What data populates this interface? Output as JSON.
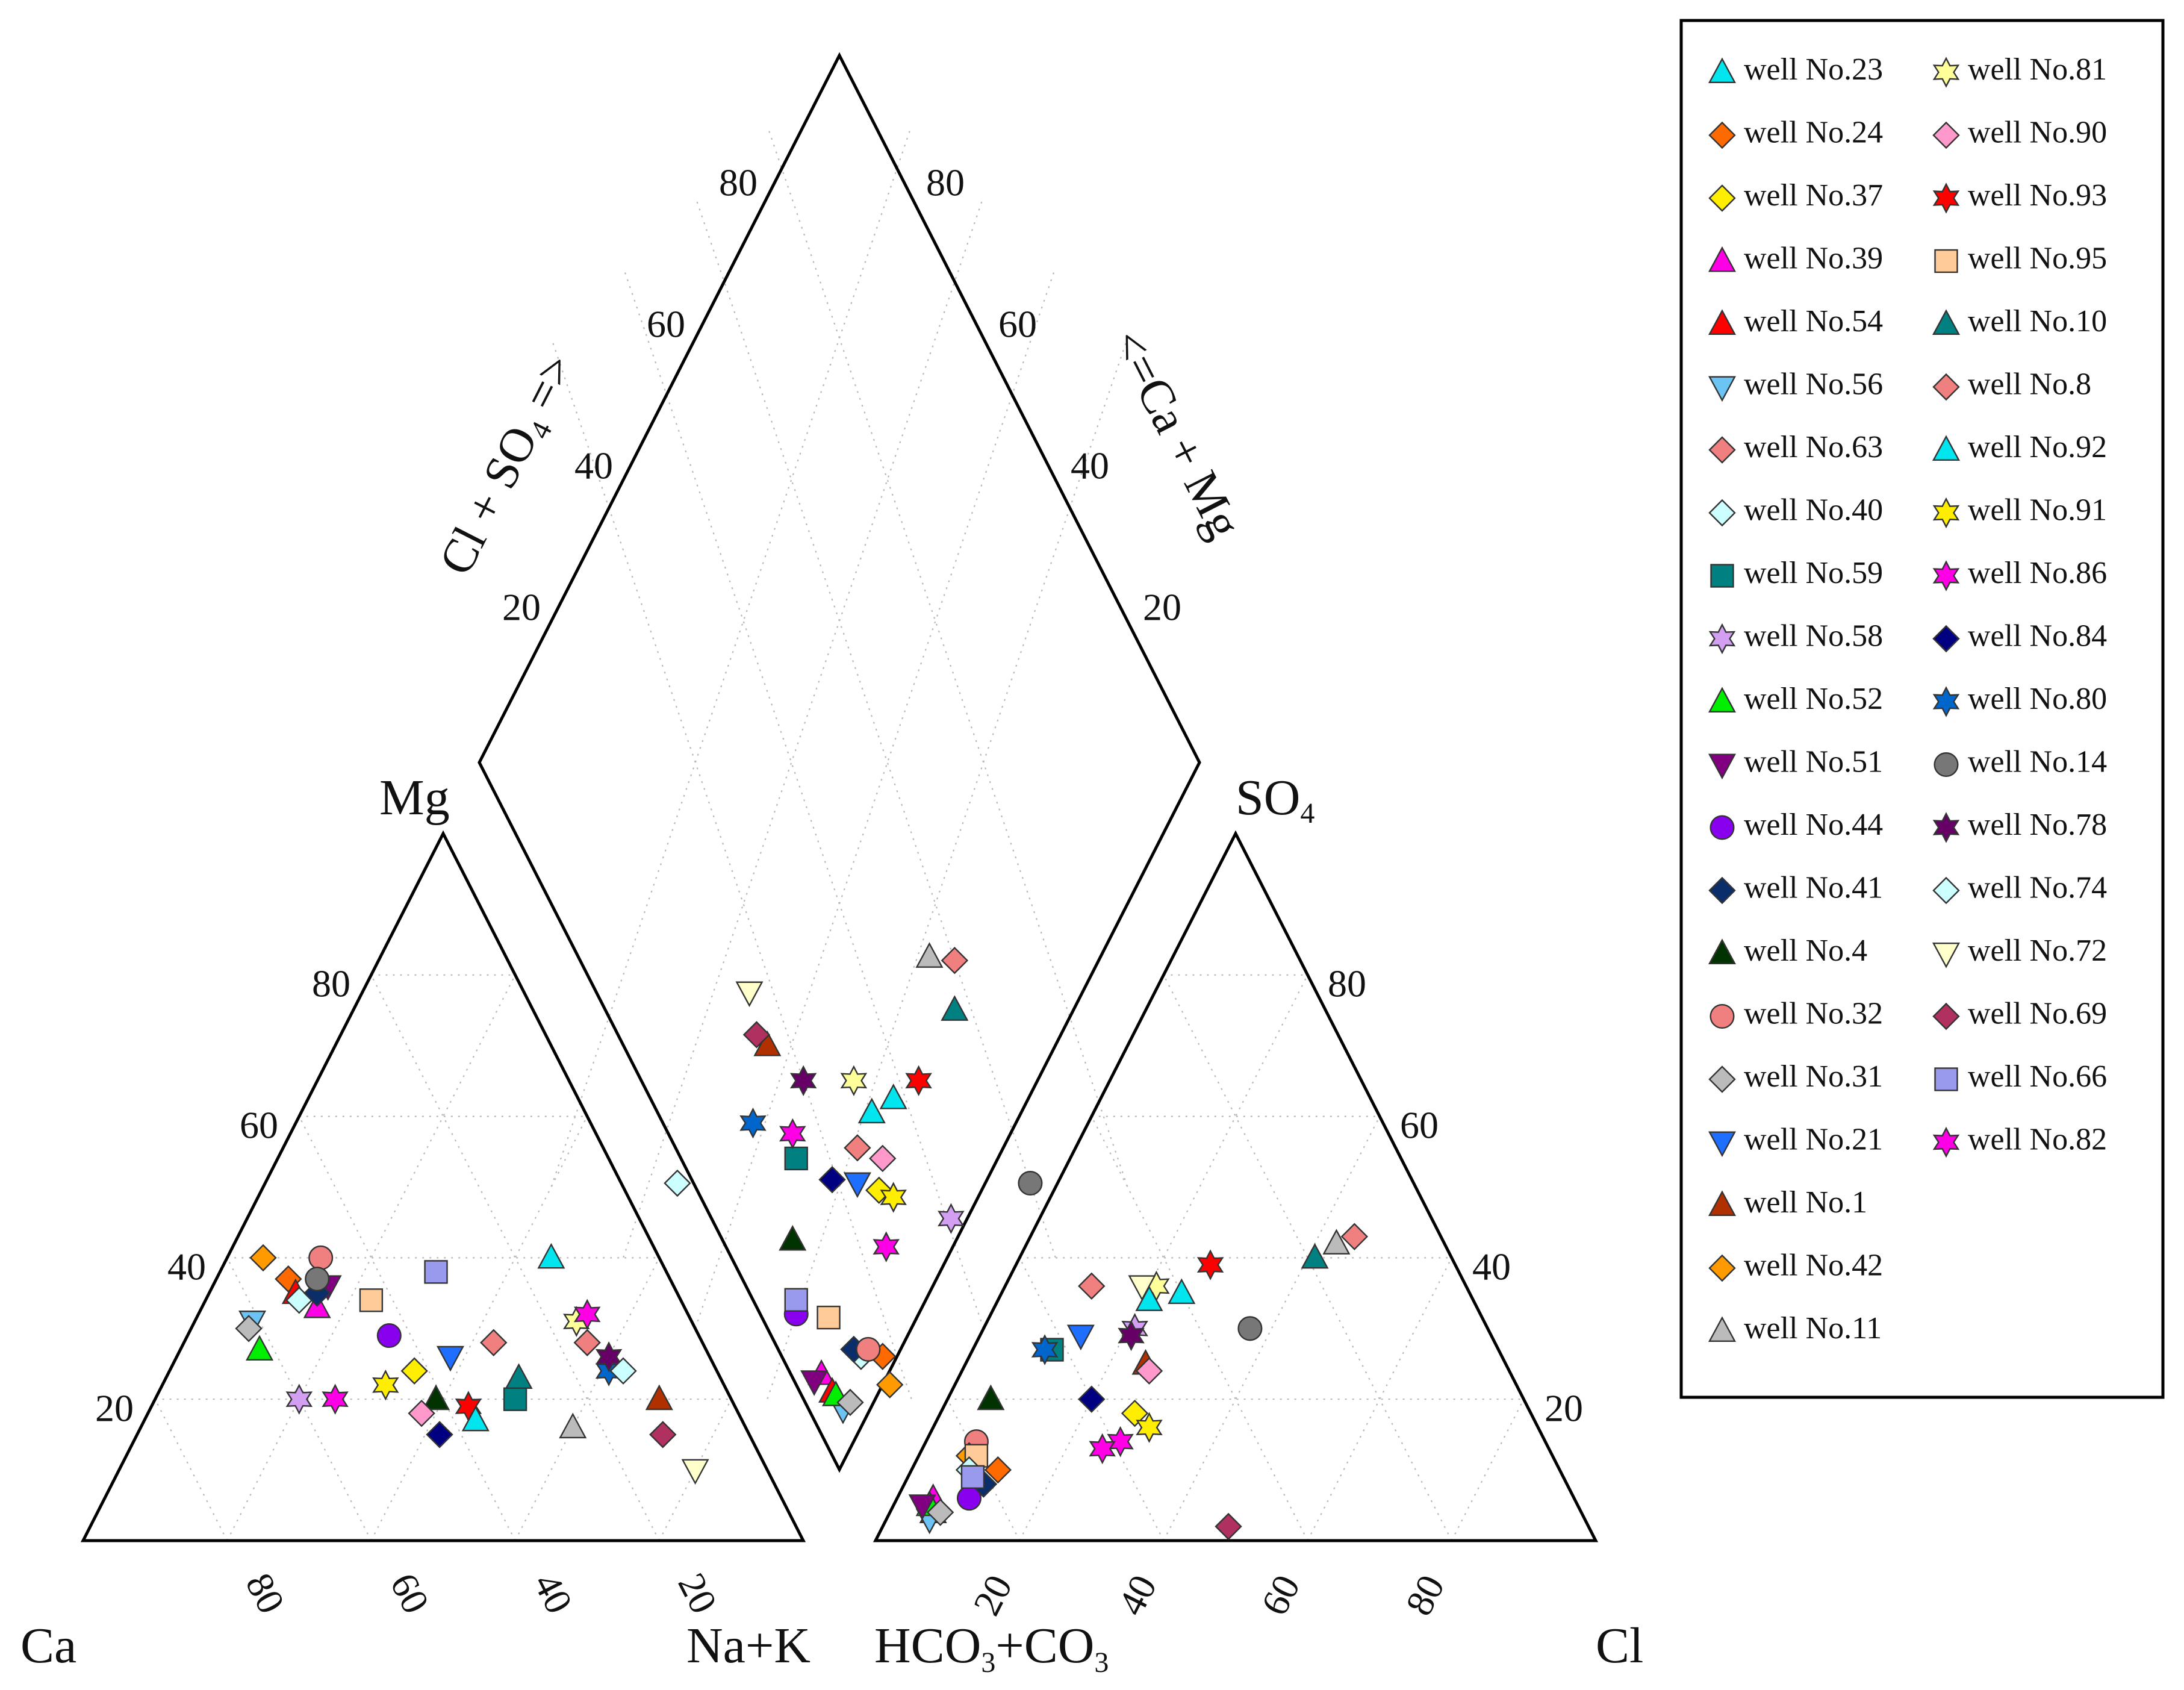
{
  "chart_data": {
    "type": "scatter",
    "title": "",
    "labels": {
      "cation_left": "Ca",
      "cation_right": "Na+K",
      "cation_top": "Mg",
      "anion_left_main": "HCO",
      "anion_left_sub1": "3",
      "anion_left_plus": "+CO",
      "anion_left_sub2": "3",
      "anion_right": "Cl",
      "anion_top_main": "SO",
      "anion_top_sub": "4",
      "diamond_left_main": "Cl + SO",
      "diamond_left_sub": "4",
      "diamond_left_arrow": " =>",
      "diamond_right": "<=Ca + Mg"
    },
    "ticks": {
      "cation_left_edge": [
        "20",
        "40",
        "60",
        "80"
      ],
      "cation_bottom": [
        "80",
        "60",
        "40",
        "20"
      ],
      "anion_right_edge": [
        "80",
        "60",
        "40",
        "20"
      ],
      "anion_bottom": [
        "20",
        "40",
        "60",
        "80"
      ],
      "diamond_left": [
        "80",
        "60",
        "40",
        "20"
      ],
      "diamond_right": [
        "80",
        "60",
        "40",
        "20"
      ]
    },
    "legend_position": "right",
    "series": [
      {
        "name": "well No.23",
        "marker": "triangle-up",
        "color": "#00e5ee",
        "cation": {
          "mg": 40,
          "nak": 45
        },
        "anion": {
          "so4": 35,
          "cl": 25
        }
      },
      {
        "name": "well No.24",
        "marker": "diamond",
        "color": "#ff6a00",
        "cation": {
          "mg": 37,
          "nak": 10
        },
        "anion": {
          "so4": 10,
          "cl": 12
        }
      },
      {
        "name": "well No.37",
        "marker": "diamond",
        "color": "#ffee00",
        "cation": {
          "mg": 24,
          "nak": 34
        },
        "anion": {
          "so4": 18,
          "cl": 27
        }
      },
      {
        "name": "well No.39",
        "marker": "triangle-up",
        "color": "#ff00e6",
        "cation": {
          "mg": 33,
          "nak": 16
        },
        "anion": {
          "so4": 6,
          "cl": 5
        }
      },
      {
        "name": "well No.54",
        "marker": "triangle-up",
        "color": "#ff0000",
        "cation": {
          "mg": 35,
          "nak": 12
        },
        "anion": {
          "so4": 4,
          "cl": 6
        }
      },
      {
        "name": "well No.56",
        "marker": "triangle-down",
        "color": "#6cc4f4",
        "cation": {
          "mg": 31,
          "nak": 8
        },
        "anion": {
          "so4": 3,
          "cl": 6
        }
      },
      {
        "name": "well No.63",
        "marker": "diamond",
        "color": "#f08080",
        "cation": {
          "mg": 28,
          "nak": 43
        },
        "anion": {
          "so4": 36,
          "cl": 12
        }
      },
      {
        "name": "well No.40",
        "marker": "diamond",
        "color": "#ccffff",
        "cation": {
          "mg": 34,
          "nak": 13
        },
        "anion": {
          "so4": 8,
          "cl": 11
        }
      },
      {
        "name": "well No.59",
        "marker": "square",
        "color": "#008080",
        "cation": {
          "mg": 20,
          "nak": 50
        },
        "anion": {
          "so4": 27,
          "cl": 11
        }
      },
      {
        "name": "well No.58",
        "marker": "star6",
        "color": "#d39ff2",
        "cation": {
          "mg": 20,
          "nak": 20
        },
        "anion": {
          "so4": 30,
          "cl": 21
        }
      },
      {
        "name": "well No.52",
        "marker": "triangle-up",
        "color": "#00ee00",
        "cation": {
          "mg": 27,
          "nak": 11
        },
        "anion": {
          "so4": 5,
          "cl": 5
        }
      },
      {
        "name": "well No.51",
        "marker": "triangle-down",
        "color": "#800080",
        "cation": {
          "mg": 36,
          "nak": 16
        },
        "anion": {
          "so4": 5,
          "cl": 4
        }
      },
      {
        "name": "well No.44",
        "marker": "circle",
        "color": "#8800ee",
        "cation": {
          "mg": 29,
          "nak": 28
        },
        "anion": {
          "so4": 6,
          "cl": 10
        }
      },
      {
        "name": "well No.41",
        "marker": "diamond",
        "color": "#0b2e6b",
        "cation": {
          "mg": 35,
          "nak": 15
        },
        "anion": {
          "so4": 8,
          "cl": 11
        }
      },
      {
        "name": "well No.4",
        "marker": "triangle-up",
        "color": "#003300",
        "cation": {
          "mg": 20,
          "nak": 39
        },
        "anion": {
          "so4": 20,
          "cl": 6
        }
      },
      {
        "name": "well No.32",
        "marker": "circle",
        "color": "#f08080",
        "cation": {
          "mg": 40,
          "nak": 13
        },
        "anion": {
          "so4": 14,
          "cl": 7
        }
      },
      {
        "name": "well No.31",
        "marker": "diamond",
        "color": "#bbbbbb",
        "cation": {
          "mg": 30,
          "nak": 8
        },
        "anion": {
          "so4": 4,
          "cl": 7
        }
      },
      {
        "name": "well No.21",
        "marker": "triangle-down",
        "color": "#1e6fff",
        "cation": {
          "mg": 26,
          "nak": 38
        },
        "anion": {
          "so4": 29,
          "cl": 14
        }
      },
      {
        "name": "well No.1",
        "marker": "triangle-up",
        "color": "#b03000",
        "cation": {
          "mg": 20,
          "nak": 70
        },
        "anion": {
          "so4": 25,
          "cl": 25
        }
      },
      {
        "name": "well No.42",
        "marker": "diamond",
        "color": "#ff9a00",
        "cation": {
          "mg": 40,
          "nak": 5
        },
        "anion": {
          "so4": 12,
          "cl": 7
        }
      },
      {
        "name": "well No.11",
        "marker": "triangle-up",
        "color": "#bbbbbb",
        "cation": {
          "mg": 16,
          "nak": 60
        },
        "anion": {
          "so4": 42,
          "cl": 43
        }
      },
      {
        "name": "well No.81",
        "marker": "star6",
        "color": "#ffff99",
        "cation": {
          "mg": 31,
          "nak": 53
        },
        "anion": {
          "so4": 36,
          "cl": 21
        }
      },
      {
        "name": "well No.90",
        "marker": "diamond",
        "color": "#ff99cc",
        "cation": {
          "mg": 18,
          "nak": 38
        },
        "anion": {
          "so4": 24,
          "cl": 26
        }
      },
      {
        "name": "well No.93",
        "marker": "star6",
        "color": "#ff0000",
        "cation": {
          "mg": 19,
          "nak": 44
        },
        "anion": {
          "so4": 39,
          "cl": 27
        }
      },
      {
        "name": "well No.95",
        "marker": "square",
        "color": "#ffcc99",
        "cation": {
          "mg": 34,
          "nak": 23
        },
        "anion": {
          "so4": 12,
          "cl": 8
        }
      },
      {
        "name": "well No.10",
        "marker": "triangle-up",
        "color": "#008080",
        "cation": {
          "mg": 23,
          "nak": 49
        },
        "anion": {
          "so4": 40,
          "cl": 41
        }
      },
      {
        "name": "well No.8",
        "marker": "diamond",
        "color": "#f08080",
        "cation": {
          "mg": 28,
          "nak": 56
        },
        "anion": {
          "so4": 43,
          "cl": 45
        }
      },
      {
        "name": "well No.92",
        "marker": "triangle-up",
        "color": "#00e5ee",
        "cation": {
          "mg": 17,
          "nak": 46
        },
        "anion": {
          "so4": 34,
          "cl": 21
        }
      },
      {
        "name": "well No.91",
        "marker": "star6",
        "color": "#ffee00",
        "cation": {
          "mg": 22,
          "nak": 31
        },
        "anion": {
          "so4": 16,
          "cl": 30
        }
      },
      {
        "name": "well No.86",
        "marker": "star6",
        "color": "#ff00e6",
        "cation": {
          "mg": 32,
          "nak": 54
        },
        "anion": {
          "so4": 14,
          "cl": 27
        }
      },
      {
        "name": "well No.84",
        "marker": "diamond",
        "color": "#000080",
        "cation": {
          "mg": 15,
          "nak": 42
        },
        "anion": {
          "so4": 20,
          "cl": 20
        }
      },
      {
        "name": "well No.80",
        "marker": "star6",
        "color": "#0066cc",
        "cation": {
          "mg": 24,
          "nak": 61
        },
        "anion": {
          "so4": 27,
          "cl": 10
        }
      },
      {
        "name": "well No.14",
        "marker": "circle",
        "color": "#777777",
        "cation": {
          "mg": 37,
          "nak": 14
        },
        "anion": {
          "so4": 30,
          "cl": 37
        }
      },
      {
        "name": "well No.78",
        "marker": "star6",
        "color": "#660066",
        "cation": {
          "mg": 26,
          "nak": 60
        },
        "anion": {
          "so4": 29,
          "cl": 21
        }
      },
      {
        "name": "well No.74",
        "marker": "diamond",
        "color": "#ccffff",
        "cation": {
          "mg": 24,
          "nak": 63
        },
        "anion": {
          "so4": 10,
          "cl": 8
        }
      },
      {
        "name": "well No.72",
        "marker": "triangle-down",
        "color": "#ffffcc",
        "cation": {
          "mg": 10,
          "nak": 80
        },
        "anion": {
          "so4": 36,
          "cl": 19
        }
      },
      {
        "name": "well No.69",
        "marker": "diamond",
        "color": "#b03060",
        "cation": {
          "mg": 15,
          "nak": 73
        },
        "anion": {
          "so4": 2,
          "cl": 48
        }
      },
      {
        "name": "well No.66",
        "marker": "square",
        "color": "#9999ee",
        "cation": {
          "mg": 38,
          "nak": 30
        },
        "anion": {
          "so4": 9,
          "cl": 9
        }
      },
      {
        "name": "well No.82",
        "marker": "star6",
        "color": "#ff00e6",
        "cation": {
          "mg": 20,
          "nak": 25
        },
        "anion": {
          "so4": 13,
          "cl": 25
        }
      }
    ]
  }
}
